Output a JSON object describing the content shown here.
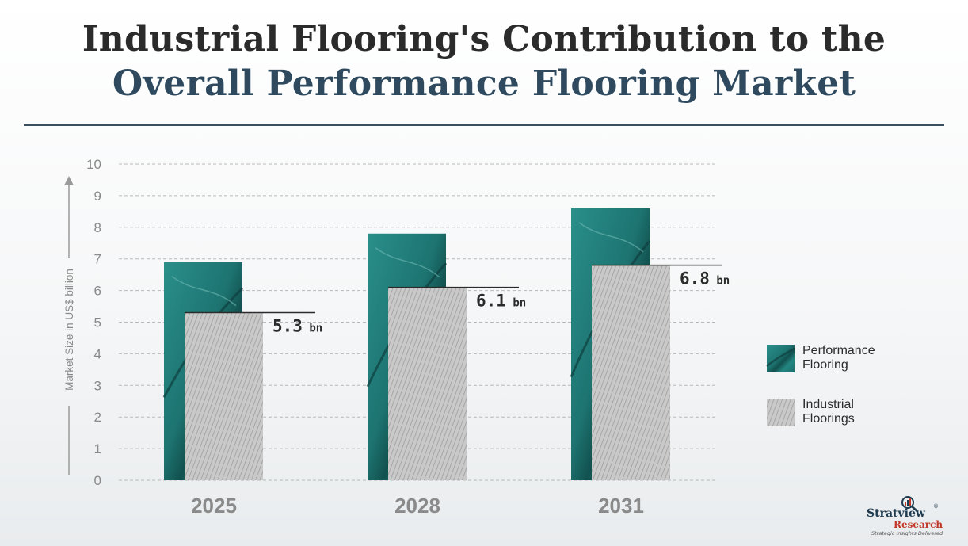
{
  "header": {
    "title_line1": "Industrial Flooring's Contribution to the",
    "title_line2": "Overall Performance Flooring Market"
  },
  "chart_data": {
    "type": "bar",
    "categories": [
      "2025",
      "2028",
      "2031"
    ],
    "series": [
      {
        "name": "Performance Flooring",
        "values": [
          6.9,
          7.8,
          8.6
        ],
        "color": "#1f7f7c"
      },
      {
        "name": "Industrial Floorings",
        "values": [
          5.3,
          6.1,
          6.8
        ],
        "color": "#bdbdbd"
      }
    ],
    "data_labels": [
      {
        "value": "5.3",
        "unit": "bn"
      },
      {
        "value": "6.1",
        "unit": "bn"
      },
      {
        "value": "6.8",
        "unit": "bn"
      }
    ],
    "ylabel": "Market Size in US$ billion",
    "yticks": [
      "0",
      "1",
      "2",
      "3",
      "4",
      "5",
      "6",
      "7",
      "8",
      "9",
      "10"
    ],
    "ylim": [
      0,
      10
    ],
    "grid": true,
    "legend_position": "right"
  },
  "brand": {
    "name": "Stratview",
    "sub": "Research",
    "tagline": "Strategic Insights Delivered",
    "reg": "®"
  }
}
